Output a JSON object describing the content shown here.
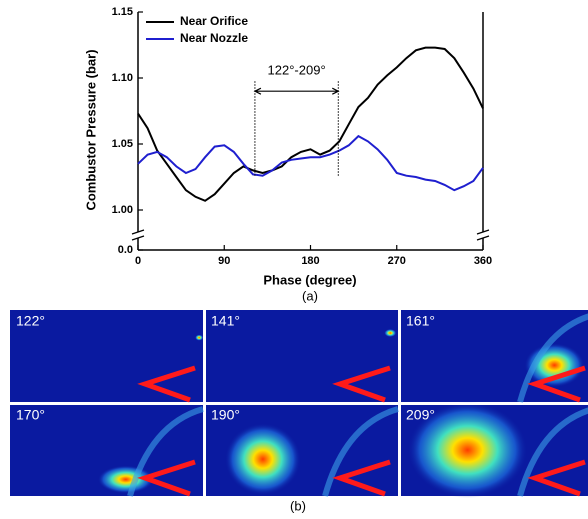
{
  "chart_data": {
    "type": "line",
    "x_label": "Phase (degree)",
    "y_label": "Combustor Pressure (bar)",
    "caption": "(a)",
    "xlim": [
      0,
      360
    ],
    "xticks": [
      0,
      90,
      180,
      270,
      360
    ],
    "ylim": [
      0,
      1.15
    ],
    "y_break": true,
    "yticks": [
      {
        "value": 0,
        "label": "0.0"
      },
      {
        "value": 1,
        "label": "1.00"
      },
      1.05,
      {
        "value": 1.1,
        "label": "1.10"
      },
      1.15
    ],
    "legend": "upper left",
    "x": [
      0,
      10,
      20,
      30,
      40,
      50,
      60,
      70,
      80,
      90,
      100,
      110,
      120,
      130,
      140,
      150,
      160,
      170,
      180,
      190,
      200,
      210,
      220,
      230,
      240,
      250,
      260,
      270,
      280,
      290,
      300,
      310,
      320,
      330,
      340,
      350,
      360
    ],
    "series": [
      {
        "name": "Near Orifice",
        "color": "#000000",
        "values": [
          1.073,
          1.062,
          1.045,
          1.035,
          1.025,
          1.015,
          1.01,
          1.007,
          1.012,
          1.02,
          1.028,
          1.033,
          1.03,
          1.028,
          1.03,
          1.033,
          1.04,
          1.044,
          1.046,
          1.042,
          1.045,
          1.052,
          1.065,
          1.078,
          1.085,
          1.095,
          1.102,
          1.108,
          1.115,
          1.121,
          1.123,
          1.123,
          1.122,
          1.115,
          1.104,
          1.092,
          1.077
        ]
      },
      {
        "name": "Near Nozzle",
        "color": "#1f1fcf",
        "values": [
          1.035,
          1.042,
          1.044,
          1.04,
          1.033,
          1.028,
          1.031,
          1.04,
          1.048,
          1.049,
          1.044,
          1.035,
          1.027,
          1.026,
          1.03,
          1.036,
          1.038,
          1.039,
          1.04,
          1.04,
          1.042,
          1.045,
          1.049,
          1.056,
          1.052,
          1.046,
          1.038,
          1.028,
          1.026,
          1.025,
          1.023,
          1.022,
          1.019,
          1.015,
          1.018,
          1.022,
          1.032
        ]
      }
    ],
    "annotation": {
      "text": "122°-209°",
      "x": [
        122,
        209
      ],
      "y": 1.09
    }
  },
  "images": {
    "caption": "(b)",
    "panels": [
      "122°",
      "141°",
      "161°",
      "170°",
      "190°",
      "209°"
    ]
  }
}
